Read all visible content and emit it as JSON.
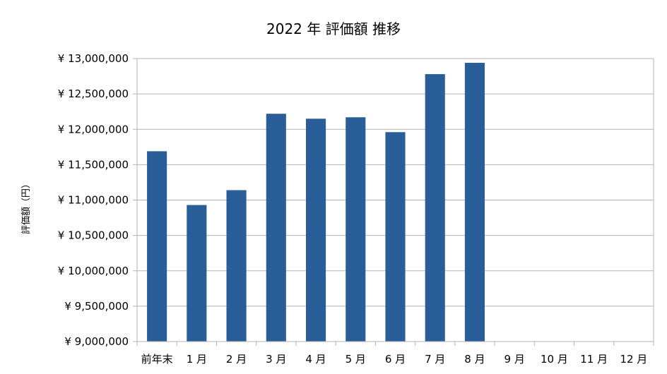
{
  "chart_data": {
    "type": "bar",
    "title": "2022 年 評価額 推移",
    "xlabel": "",
    "ylabel": "評価額（円）",
    "categories": [
      "前年末",
      "1 月",
      "2 月",
      "3 月",
      "4 月",
      "5 月",
      "6 月",
      "7 月",
      "8 月",
      "9 月",
      "10 月",
      "11 月",
      "12 月"
    ],
    "values": [
      11690000,
      10930000,
      11140000,
      12220000,
      12150000,
      12170000,
      11960000,
      12780000,
      12940000,
      null,
      null,
      null,
      null
    ],
    "ylim": [
      9000000,
      13000000
    ],
    "yticks": [
      9000000,
      9500000,
      10000000,
      10500000,
      11000000,
      11500000,
      12000000,
      12500000,
      13000000
    ],
    "ytick_labels": [
      "¥ 9,000,000",
      "¥ 9,500,000",
      "¥ 10,000,000",
      "¥ 10,500,000",
      "¥ 11,000,000",
      "¥ 11,500,000",
      "¥ 12,000,000",
      "¥ 12,500,000",
      "¥ 13,000,000"
    ],
    "grid": true,
    "legend": "none",
    "bar_color": "#2a5e99",
    "grid_color": "#b3b3b3",
    "axis_color": "#b3b3b3"
  }
}
